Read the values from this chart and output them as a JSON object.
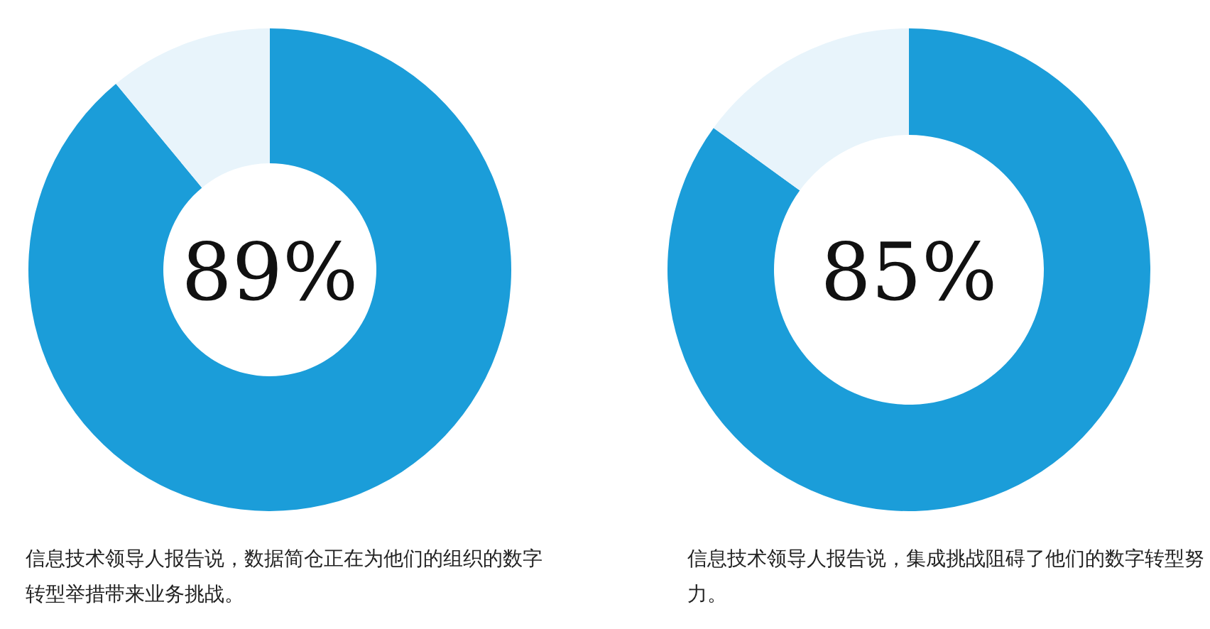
{
  "chart_data": [
    {
      "type": "donut",
      "categories": [
        null,
        null
      ],
      "values": [
        89,
        11
      ],
      "colors": [
        "#1b9dd9",
        "#e8f4fb"
      ],
      "value_labels": [
        "89%",
        null
      ],
      "legend": false,
      "annotations": [
        "信息技术领导人报告说，数据简仓正在为他们的组织的数字转型举措带来业务挑战。"
      ]
    },
    {
      "type": "donut",
      "categories": [
        null,
        null
      ],
      "values": [
        85,
        15
      ],
      "colors": [
        "#1b9dd9",
        "#e8f4fb"
      ],
      "value_labels": [
        "85%",
        null
      ],
      "legend": false,
      "annotations": [
        "信息技术领导人报告说，集成挑战阻碍了他们的数字转型努力。"
      ]
    }
  ]
}
